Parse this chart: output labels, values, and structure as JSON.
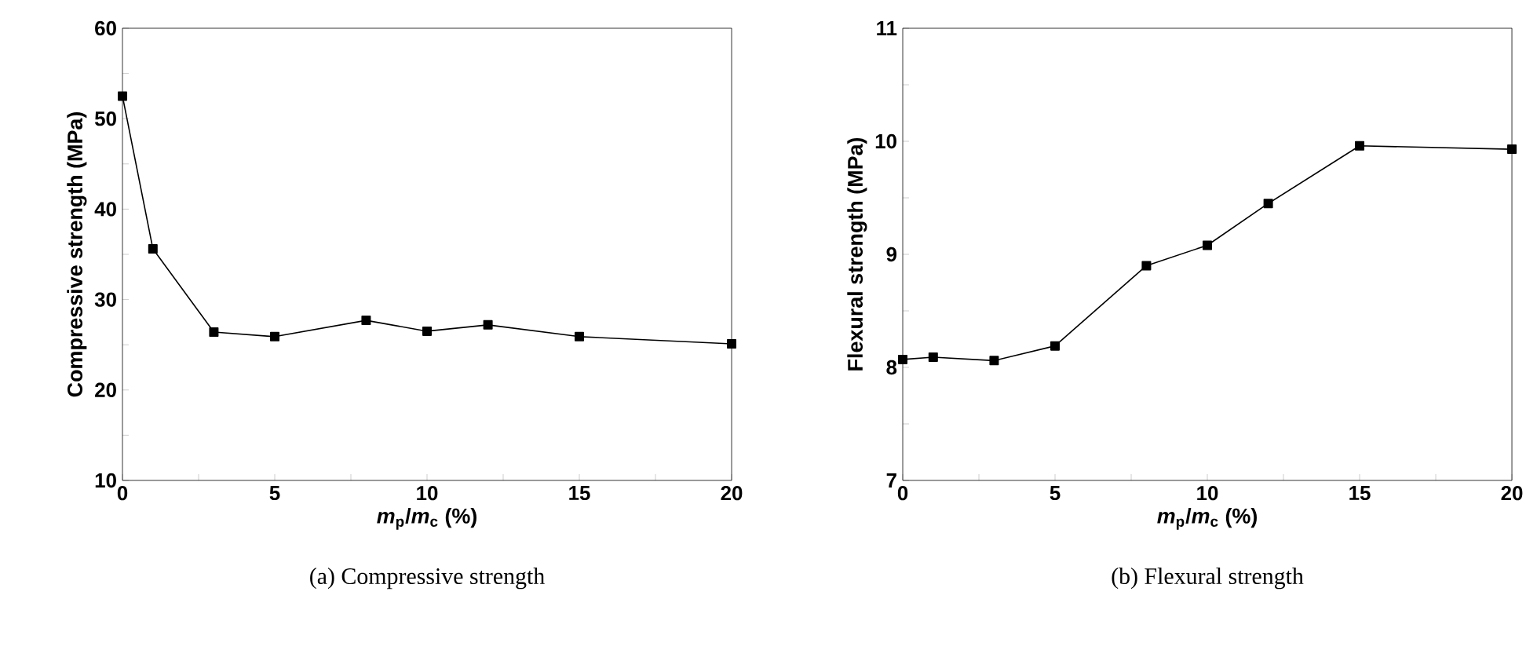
{
  "chart_data": [
    {
      "type": "line",
      "title": "(a) Compressive strength",
      "xlabel": "*m*$_{p}$/*m*$_{c}$ (%)",
      "ylabel": "Compressive strength (MPa)",
      "x": [
        0,
        1,
        3,
        5,
        8,
        10,
        12,
        15,
        20
      ],
      "series": [
        {
          "color": "#000000",
          "values": [
            52.5,
            35.6,
            26.4,
            25.9,
            27.7,
            26.5,
            27.2,
            25.9,
            25.1
          ]
        }
      ],
      "xlim": [
        0,
        20
      ],
      "ylim": [
        10,
        60
      ],
      "xticks": [
        0,
        {
          "value": 2.5,
          "label": null
        },
        5,
        {
          "value": 7.5,
          "label": null
        },
        10,
        {
          "value": 12.5,
          "label": null
        },
        15,
        {
          "value": 17.5,
          "label": null
        },
        20
      ],
      "yticks": [
        10,
        {
          "value": 15,
          "label": null
        },
        20,
        {
          "value": 25,
          "label": null
        },
        30,
        {
          "value": 35,
          "label": null
        },
        40,
        {
          "value": 45,
          "label": null
        },
        50,
        {
          "value": 55,
          "label": null
        },
        60
      ],
      "marker": "square",
      "line_style": "solid"
    },
    {
      "type": "line",
      "title": "(b) Flexural strength",
      "xlabel": "*m*$_{p}$/*m*$_{c}$ (%)",
      "ylabel": "Flexural strength (MPa)",
      "x": [
        0,
        1,
        3,
        5,
        8,
        10,
        12,
        15,
        20
      ],
      "series": [
        {
          "color": "#000000",
          "values": [
            8.07,
            8.09,
            8.06,
            8.19,
            8.9,
            9.08,
            9.45,
            9.96,
            9.93
          ]
        }
      ],
      "xlim": [
        0,
        20
      ],
      "ylim": [
        7,
        11
      ],
      "xticks": [
        0,
        {
          "value": 2.5,
          "label": null
        },
        5,
        {
          "value": 7.5,
          "label": null
        },
        10,
        {
          "value": 12.5,
          "label": null
        },
        15,
        {
          "value": 17.5,
          "label": null
        },
        20
      ],
      "yticks": [
        7,
        {
          "value": 7.5,
          "label": null
        },
        8,
        {
          "value": 8.5,
          "label": null
        },
        9,
        {
          "value": 9.5,
          "label": null
        },
        10,
        {
          "value": 10.5,
          "label": null
        },
        11
      ],
      "marker": "square",
      "line_style": "solid"
    }
  ]
}
